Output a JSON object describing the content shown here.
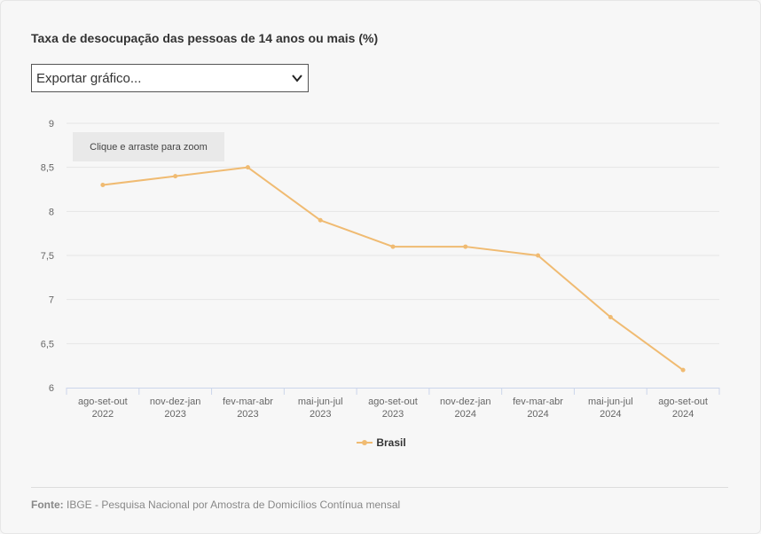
{
  "title": "Taxa de desocupação das pessoas de 14 anos ou mais (%)",
  "export": {
    "label": "Exportar gráfico..."
  },
  "zoom_hint": "Clique e arraste para zoom",
  "legend": {
    "label": "Brasil"
  },
  "source": {
    "prefix": "Fonte:",
    "text": "IBGE - Pesquisa Nacional por Amostra de Domicílios Contínua mensal"
  },
  "colors": {
    "series": "#f0bb72",
    "grid": "#e6e6e6",
    "axis_text": "#666666"
  },
  "chart_data": {
    "type": "line",
    "title": "Taxa de desocupação das pessoas de 14 anos ou mais (%)",
    "categories": [
      [
        "ago-set-out",
        "2022"
      ],
      [
        "nov-dez-jan",
        "2023"
      ],
      [
        "fev-mar-abr",
        "2023"
      ],
      [
        "mai-jun-jul",
        "2023"
      ],
      [
        "ago-set-out",
        "2023"
      ],
      [
        "nov-dez-jan",
        "2024"
      ],
      [
        "fev-mar-abr",
        "2024"
      ],
      [
        "mai-jun-jul",
        "2024"
      ],
      [
        "ago-set-out",
        "2024"
      ]
    ],
    "series": [
      {
        "name": "Brasil",
        "values": [
          8.3,
          8.4,
          8.5,
          7.9,
          7.6,
          7.6,
          7.5,
          6.8,
          6.2
        ]
      }
    ],
    "yticks": [
      "6",
      "6,5",
      "7",
      "7,5",
      "8",
      "8,5",
      "9"
    ],
    "ylim": [
      6,
      9
    ],
    "grid": true,
    "legend_position": "bottom"
  }
}
